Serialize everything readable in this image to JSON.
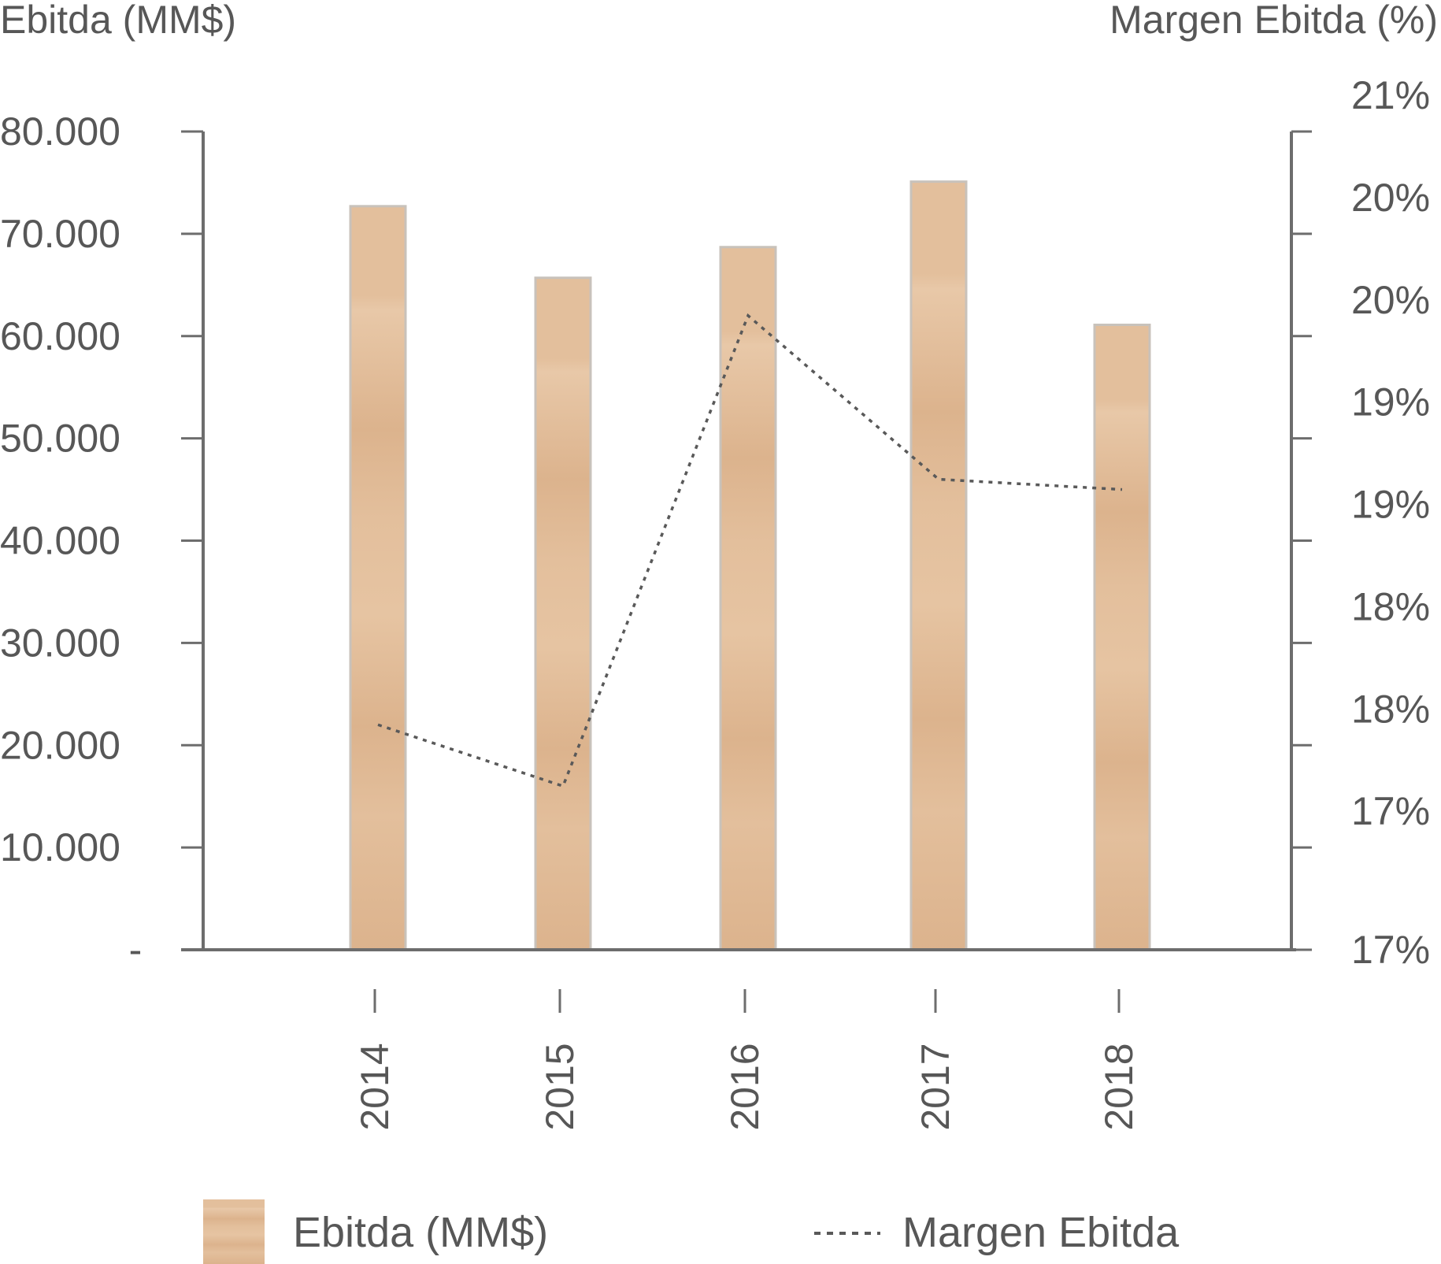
{
  "chart_data": {
    "type": "bar",
    "categories": [
      "2014",
      "2015",
      "2016",
      "2017",
      "2018"
    ],
    "series": [
      {
        "name": "Ebitda (MM$)",
        "axis": "left",
        "kind": "bar",
        "values": [
          72700,
          65700,
          68700,
          75100,
          61100
        ]
      },
      {
        "name": "Margen Ebitda",
        "axis": "right",
        "kind": "line",
        "style": "dotted",
        "values": [
          18.1,
          17.8,
          20.1,
          19.3,
          19.25
        ]
      }
    ],
    "ylabel_left": "Ebitda (MM$)",
    "ylabel_right": "Margen Ebitda (%)",
    "ylim_left": [
      0,
      80000
    ],
    "ylim_right": [
      17,
      21
    ],
    "yticks_left": [
      {
        "value": 0,
        "label": "-"
      },
      {
        "value": 10000,
        "label": "10.000"
      },
      {
        "value": 20000,
        "label": "20.000"
      },
      {
        "value": 30000,
        "label": "30.000"
      },
      {
        "value": 40000,
        "label": "40.000"
      },
      {
        "value": 50000,
        "label": "50.000"
      },
      {
        "value": 60000,
        "label": "60.000"
      },
      {
        "value": 70000,
        "label": "70.000"
      },
      {
        "value": 80000,
        "label": "80.000"
      }
    ],
    "yticks_right": [
      "17%",
      "17%",
      "18%",
      "18%",
      "19%",
      "19%",
      "20%",
      "20%",
      "21%"
    ],
    "legend": {
      "position": "bottom",
      "items": [
        {
          "label": "Ebitda (MM$)",
          "marker": "bar"
        },
        {
          "label": "Margen Ebitda",
          "marker": "dotted-line"
        }
      ]
    },
    "grid": false,
    "colors": {
      "bar": "#e3bf9c",
      "bar_dark": "#dcb38d",
      "bar_edge": "#c8c2bb",
      "line": "#595959",
      "axis": "#6d6d6d",
      "text": "#575757"
    }
  }
}
